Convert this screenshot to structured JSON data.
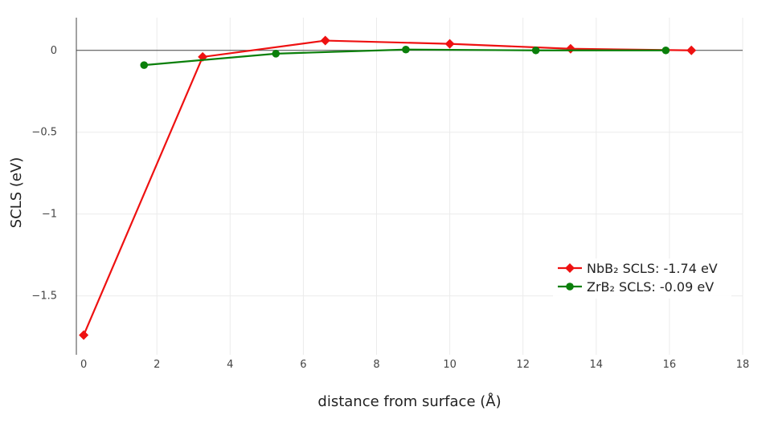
{
  "chart_data": {
    "type": "line",
    "title": "",
    "xlabel": "distance from surface (Å)",
    "ylabel": "SCLS (eV)",
    "xlim": [
      -0.2,
      18
    ],
    "ylim": [
      -1.86,
      0.2
    ],
    "xticks": [
      0,
      2,
      4,
      6,
      8,
      10,
      12,
      14,
      16,
      18
    ],
    "yticks": [
      0,
      -0.5,
      -1,
      -1.5
    ],
    "ytick_labels": [
      "0",
      "−0.5",
      "−1",
      "−1.5"
    ],
    "grid": true,
    "zero_line": true,
    "legend_position": "bottom-right",
    "series": [
      {
        "name": "NbB₂ SCLS: -1.74 eV",
        "color": "#ee1111",
        "marker": "diamond",
        "x": [
          0,
          3.25,
          6.6,
          10,
          13.3,
          16.6
        ],
        "y": [
          -1.74,
          -0.04,
          0.06,
          0.04,
          0.01,
          0.0
        ]
      },
      {
        "name": "ZrB₂ SCLS: -0.09 eV",
        "color": "#0a7f0a",
        "marker": "circle",
        "x": [
          1.65,
          5.25,
          8.8,
          12.35,
          15.9
        ],
        "y": [
          -0.09,
          -0.02,
          0.005,
          0.0,
          0.0
        ]
      }
    ]
  }
}
